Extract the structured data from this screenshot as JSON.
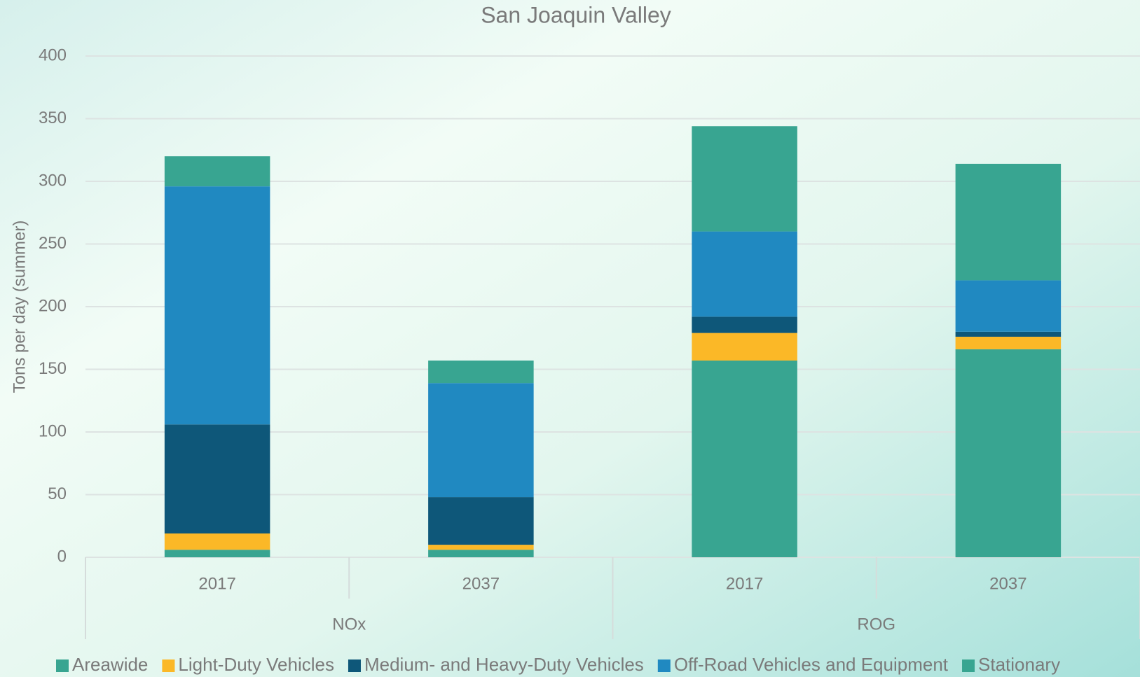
{
  "chart_data": {
    "type": "stacked_bar",
    "title": "San Joaquin Valley",
    "y_label": "Tons per day (summer)",
    "categories": [
      "2017",
      "2037",
      "2017",
      "2037"
    ],
    "groups": [
      "NOx",
      "ROG"
    ],
    "series": [
      {
        "name": "Areawide",
        "color": "#38a591",
        "values": [
          6,
          6,
          157,
          166
        ]
      },
      {
        "name": "Light-Duty Vehicles",
        "color": "#fbb827",
        "values": [
          13,
          4,
          22,
          10
        ]
      },
      {
        "name": "Medium- and Heavy-Duty Vehicles",
        "color": "#0e5779",
        "values": [
          87,
          38,
          13,
          4
        ]
      },
      {
        "name": "Off-Road Vehicles and Equipment",
        "color": "#2089c1",
        "values": [
          190,
          91,
          68,
          41
        ]
      },
      {
        "name": "Stationary",
        "color": "#38a591",
        "values": [
          24,
          18,
          84,
          93
        ]
      }
    ],
    "ylim": [
      0,
      400
    ],
    "yticks": [
      0,
      50,
      100,
      150,
      200,
      250,
      300,
      350,
      400
    ],
    "grid": true,
    "legend": "bottom"
  }
}
